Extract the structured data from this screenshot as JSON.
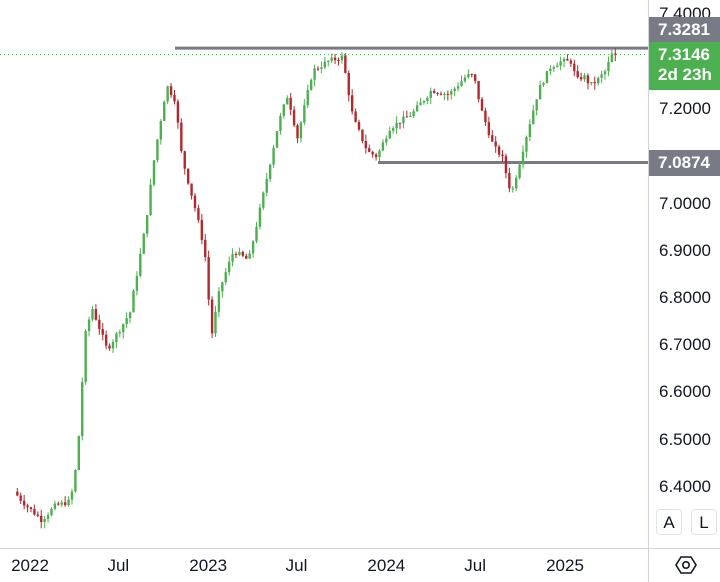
{
  "chart_data": {
    "type": "candlestick",
    "title": "",
    "xlabel": "",
    "ylabel": "",
    "ylim": [
      6.3,
      7.4
    ],
    "xlim": [
      "2021-12-06",
      "2025-04-14"
    ],
    "grid": false,
    "y_ticks": [
      "6.4000",
      "6.5000",
      "6.6000",
      "6.7000",
      "6.8000",
      "6.9000",
      "7.0000",
      "7.2000",
      "7.4000"
    ],
    "x_ticks": [
      {
        "label": "2022",
        "date": "2022-01-01"
      },
      {
        "label": "Jul",
        "date": "2022-07-01"
      },
      {
        "label": "2023",
        "date": "2023-01-01"
      },
      {
        "label": "Jul",
        "date": "2023-07-01"
      },
      {
        "label": "2024",
        "date": "2024-01-01"
      },
      {
        "label": "Jul",
        "date": "2024-07-01"
      },
      {
        "label": "2025",
        "date": "2025-01-01"
      }
    ],
    "path_points": [
      [
        "2021-12-06",
        6.39
      ],
      [
        "2022-01-01",
        6.36
      ],
      [
        "2022-02-01",
        6.33
      ],
      [
        "2022-03-01",
        6.36
      ],
      [
        "2022-04-01",
        6.37
      ],
      [
        "2022-04-15",
        6.46
      ],
      [
        "2022-05-01",
        6.72
      ],
      [
        "2022-05-15",
        6.78
      ],
      [
        "2022-06-15",
        6.69
      ],
      [
        "2022-07-15",
        6.74
      ],
      [
        "2022-08-01",
        6.77
      ],
      [
        "2022-09-01",
        6.95
      ],
      [
        "2022-09-20",
        7.1
      ],
      [
        "2022-10-15",
        7.25
      ],
      [
        "2022-11-01",
        7.22
      ],
      [
        "2022-11-15",
        7.1
      ],
      [
        "2022-12-15",
        6.98
      ],
      [
        "2023-01-01",
        6.9
      ],
      [
        "2023-01-15",
        6.72
      ],
      [
        "2023-02-01",
        6.82
      ],
      [
        "2023-03-01",
        6.9
      ],
      [
        "2023-04-01",
        6.88
      ],
      [
        "2023-05-01",
        7.02
      ],
      [
        "2023-06-01",
        7.17
      ],
      [
        "2023-06-20",
        7.23
      ],
      [
        "2023-07-10",
        7.14
      ],
      [
        "2023-08-10",
        7.28
      ],
      [
        "2023-09-10",
        7.3
      ],
      [
        "2023-10-10",
        7.31
      ],
      [
        "2023-11-01",
        7.18
      ],
      [
        "2023-12-01",
        7.11
      ],
      [
        "2023-12-20",
        7.1
      ],
      [
        "2024-01-15",
        7.16
      ],
      [
        "2024-03-01",
        7.19
      ],
      [
        "2024-04-10",
        7.24
      ],
      [
        "2024-05-15",
        7.23
      ],
      [
        "2024-06-20",
        7.27
      ],
      [
        "2024-07-05",
        7.27
      ],
      [
        "2024-07-20",
        7.2
      ],
      [
        "2024-08-15",
        7.12
      ],
      [
        "2024-09-01",
        7.1
      ],
      [
        "2024-09-20",
        7.02
      ],
      [
        "2024-10-10",
        7.1
      ],
      [
        "2024-10-25",
        7.16
      ],
      [
        "2024-11-15",
        7.24
      ],
      [
        "2024-12-10",
        7.29
      ],
      [
        "2024-12-31",
        7.3
      ],
      [
        "2025-01-20",
        7.3
      ],
      [
        "2025-02-01",
        7.26
      ],
      [
        "2025-02-15",
        7.27
      ],
      [
        "2025-03-01",
        7.25
      ],
      [
        "2025-03-15",
        7.26
      ],
      [
        "2025-04-01",
        7.28
      ],
      [
        "2025-04-14",
        7.3146
      ]
    ],
    "horizontal_lines": [
      {
        "price": 7.3281,
        "label": "7.3281",
        "color": "#787b86",
        "start": "2022-10-25"
      },
      {
        "price": 7.0874,
        "label": "7.0874",
        "color": "#787b86",
        "start": "2023-12-15"
      }
    ],
    "last_price": {
      "value": 7.3146,
      "label": "7.3146",
      "countdown": "2d 23h",
      "color": "#4caf50"
    },
    "candle_colors": {
      "up": "#4caf50",
      "down": "#b2282e"
    }
  },
  "scale_buttons": {
    "auto": "A",
    "log": "L"
  },
  "icons": {
    "settings": "settings-icon"
  }
}
